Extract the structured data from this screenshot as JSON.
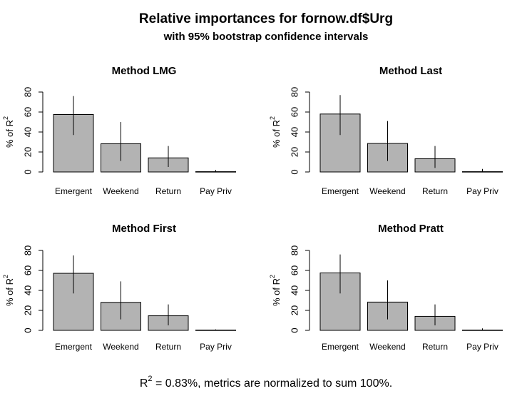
{
  "figure": {
    "title": "Relative importances for fornow.df$Urg",
    "subtitle": "with 95% bootstrap confidence intervals",
    "footnote": {
      "r_label": "R",
      "r_sup": "2",
      "text": " = 0.83%, metrics are normalized to sum 100%."
    }
  },
  "colors": {
    "bar_fill": "#b3b3b3",
    "bar_stroke": "#000000",
    "text": "#000000"
  },
  "chart_data": [
    {
      "type": "bar",
      "title": "Method LMG",
      "ylabel": "% of R2",
      "ylim": [
        0,
        80
      ],
      "yticks": [
        0,
        20,
        40,
        60,
        80
      ],
      "categories": [
        "Emergent",
        "Weekend",
        "Return",
        "Pay Priv"
      ],
      "values": [
        57.5,
        28.2,
        14.1,
        0.3
      ],
      "ci_lower": [
        37,
        11,
        5,
        0
      ],
      "ci_upper": [
        76,
        50,
        26,
        2
      ]
    },
    {
      "type": "bar",
      "title": "Method Last",
      "ylabel": "% of R2",
      "ylim": [
        0,
        80
      ],
      "yticks": [
        0,
        20,
        40,
        60,
        80
      ],
      "categories": [
        "Emergent",
        "Weekend",
        "Return",
        "Pay Priv"
      ],
      "values": [
        58.0,
        28.5,
        13.2,
        0.3
      ],
      "ci_lower": [
        37,
        11,
        4,
        0
      ],
      "ci_upper": [
        77,
        51,
        26,
        3
      ]
    },
    {
      "type": "bar",
      "title": "Method First",
      "ylabel": "% of R2",
      "ylim": [
        0,
        80
      ],
      "yticks": [
        0,
        20,
        40,
        60,
        80
      ],
      "categories": [
        "Emergent",
        "Weekend",
        "Return",
        "Pay Priv"
      ],
      "values": [
        57.1,
        28.0,
        14.6,
        0.3
      ],
      "ci_lower": [
        37,
        11,
        5,
        0
      ],
      "ci_upper": [
        75,
        49,
        26,
        1
      ]
    },
    {
      "type": "bar",
      "title": "Method Pratt",
      "ylabel": "% of R2",
      "ylim": [
        0,
        80
      ],
      "yticks": [
        0,
        20,
        40,
        60,
        80
      ],
      "categories": [
        "Emergent",
        "Weekend",
        "Return",
        "Pay Priv"
      ],
      "values": [
        57.5,
        28.3,
        14.0,
        0.3
      ],
      "ci_lower": [
        37,
        11,
        5,
        0
      ],
      "ci_upper": [
        76,
        50,
        26,
        2
      ]
    }
  ]
}
